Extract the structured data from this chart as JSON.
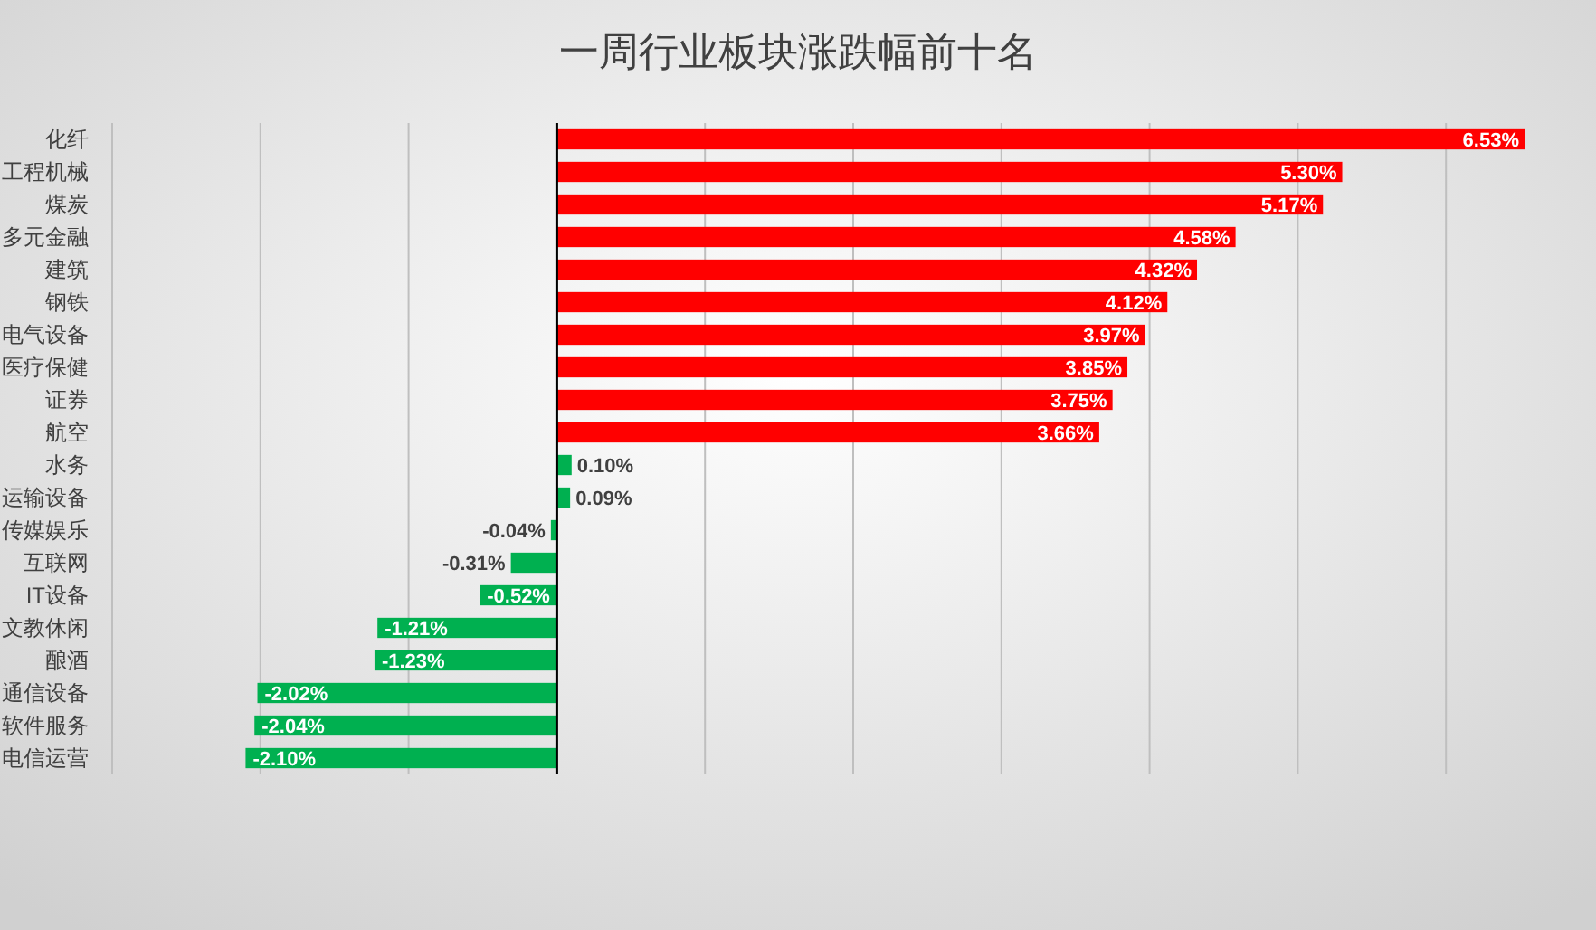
{
  "chart_data": {
    "type": "bar",
    "orientation": "horizontal",
    "title": "一周行业板块涨跌幅前十名",
    "categories": [
      "化纤",
      "工程机械",
      "煤炭",
      "多元金融",
      "建筑",
      "钢铁",
      "电气设备",
      "医疗保健",
      "证券",
      "航空",
      "水务",
      "运输设备",
      "传媒娱乐",
      "互联网",
      "IT设备",
      "文教休闲",
      "酿酒",
      "通信设备",
      "软件服务",
      "电信运营"
    ],
    "values": [
      6.53,
      5.3,
      5.17,
      4.58,
      4.32,
      4.12,
      3.97,
      3.85,
      3.75,
      3.66,
      0.1,
      0.09,
      -0.04,
      -0.31,
      -0.52,
      -1.21,
      -1.23,
      -2.02,
      -2.04,
      -2.1
    ],
    "value_labels": [
      "6.53%",
      "5.30%",
      "5.17%",
      "4.58%",
      "4.32%",
      "4.12%",
      "3.97%",
      "3.85%",
      "3.75%",
      "3.66%",
      "0.10%",
      "0.09%",
      "-0.04%",
      "-0.31%",
      "-0.52%",
      "-1.21%",
      "-1.23%",
      "-2.02%",
      "-2.04%",
      "-2.10%"
    ],
    "colors": [
      "#ff0000",
      "#ff0000",
      "#ff0000",
      "#ff0000",
      "#ff0000",
      "#ff0000",
      "#ff0000",
      "#ff0000",
      "#ff0000",
      "#ff0000",
      "#00b050",
      "#00b050",
      "#00b050",
      "#00b050",
      "#00b050",
      "#00b050",
      "#00b050",
      "#00b050",
      "#00b050",
      "#00b050"
    ],
    "xlim": [
      -3,
      7
    ],
    "xticks": [
      {
        "value": -3,
        "label": null
      },
      {
        "value": -2,
        "label": null
      },
      {
        "value": -1,
        "label": null
      },
      {
        "value": 0,
        "label": null
      },
      {
        "value": 1,
        "label": null
      },
      {
        "value": 2,
        "label": null
      },
      {
        "value": 3,
        "label": null
      },
      {
        "value": 4,
        "label": null
      },
      {
        "value": 5,
        "label": null
      },
      {
        "value": 6,
        "label": null
      }
    ],
    "grid": "x",
    "tick_labels": "y"
  }
}
